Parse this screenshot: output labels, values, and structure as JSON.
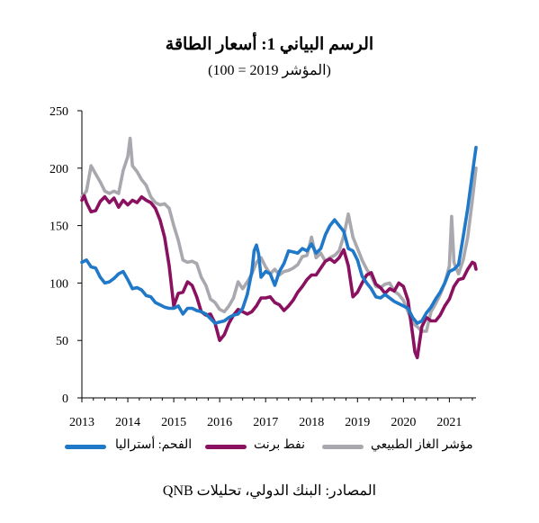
{
  "chart_data": {
    "type": "line",
    "title": "الرسم البياني 1: أسعار الطاقة",
    "subtitle": "(المؤشر 2019 = 100)",
    "source": "المصادر: البنك الدولي، تحليلات QNB",
    "x_ticks": [
      "2013",
      "2014",
      "2015",
      "2016",
      "2017",
      "2018",
      "2019",
      "2020",
      "2021"
    ],
    "y_ticks": [
      "0",
      "50",
      "100",
      "150",
      "200",
      "250"
    ],
    "ylim": [
      0,
      250
    ],
    "xlim": [
      2013.0,
      2021.58
    ],
    "grid": false,
    "legend_position": "bottom",
    "series": [
      {
        "name": "الفحم: أستراليا",
        "color": "#1f78c8",
        "points": [
          [
            2013.0,
            118
          ],
          [
            2013.1,
            120
          ],
          [
            2013.2,
            114
          ],
          [
            2013.3,
            113
          ],
          [
            2013.4,
            105
          ],
          [
            2013.5,
            100
          ],
          [
            2013.6,
            101
          ],
          [
            2013.7,
            104
          ],
          [
            2013.8,
            108
          ],
          [
            2013.9,
            110
          ],
          [
            2014.0,
            103
          ],
          [
            2014.1,
            95
          ],
          [
            2014.2,
            96
          ],
          [
            2014.3,
            94
          ],
          [
            2014.4,
            89
          ],
          [
            2014.5,
            88
          ],
          [
            2014.6,
            83
          ],
          [
            2014.7,
            81
          ],
          [
            2014.8,
            79
          ],
          [
            2014.9,
            78
          ],
          [
            2015.0,
            78
          ],
          [
            2015.1,
            80
          ],
          [
            2015.2,
            73
          ],
          [
            2015.3,
            78
          ],
          [
            2015.4,
            78
          ],
          [
            2015.5,
            76
          ],
          [
            2015.6,
            75
          ],
          [
            2015.7,
            73
          ],
          [
            2015.8,
            69
          ],
          [
            2015.9,
            65
          ],
          [
            2016.0,
            66
          ],
          [
            2016.1,
            67
          ],
          [
            2016.2,
            70
          ],
          [
            2016.3,
            72
          ],
          [
            2016.4,
            73
          ],
          [
            2016.5,
            78
          ],
          [
            2016.6,
            90
          ],
          [
            2016.7,
            110
          ],
          [
            2016.75,
            128
          ],
          [
            2016.8,
            133
          ],
          [
            2016.85,
            125
          ],
          [
            2016.9,
            105
          ],
          [
            2017.0,
            110
          ],
          [
            2017.1,
            108
          ],
          [
            2017.2,
            98
          ],
          [
            2017.3,
            110
          ],
          [
            2017.4,
            117
          ],
          [
            2017.5,
            128
          ],
          [
            2017.6,
            127
          ],
          [
            2017.7,
            126
          ],
          [
            2017.8,
            130
          ],
          [
            2017.9,
            128
          ],
          [
            2018.0,
            134
          ],
          [
            2018.1,
            126
          ],
          [
            2018.2,
            130
          ],
          [
            2018.3,
            142
          ],
          [
            2018.4,
            150
          ],
          [
            2018.5,
            155
          ],
          [
            2018.6,
            150
          ],
          [
            2018.7,
            145
          ],
          [
            2018.8,
            130
          ],
          [
            2018.9,
            128
          ],
          [
            2019.0,
            120
          ],
          [
            2019.1,
            106
          ],
          [
            2019.2,
            100
          ],
          [
            2019.3,
            95
          ],
          [
            2019.4,
            88
          ],
          [
            2019.5,
            87
          ],
          [
            2019.6,
            90
          ],
          [
            2019.7,
            87
          ],
          [
            2019.8,
            84
          ],
          [
            2019.9,
            82
          ],
          [
            2020.0,
            80
          ],
          [
            2020.1,
            78
          ],
          [
            2020.2,
            70
          ],
          [
            2020.3,
            65
          ],
          [
            2020.4,
            67
          ],
          [
            2020.5,
            74
          ],
          [
            2020.6,
            79
          ],
          [
            2020.7,
            86
          ],
          [
            2020.8,
            92
          ],
          [
            2020.9,
            100
          ],
          [
            2021.0,
            110
          ],
          [
            2021.1,
            112
          ],
          [
            2021.2,
            116
          ],
          [
            2021.3,
            140
          ],
          [
            2021.4,
            165
          ],
          [
            2021.5,
            195
          ],
          [
            2021.58,
            218
          ]
        ]
      },
      {
        "name": "نفط برنت",
        "color": "#8a1060",
        "points": [
          [
            2013.0,
            172
          ],
          [
            2013.05,
            176
          ],
          [
            2013.1,
            170
          ],
          [
            2013.2,
            162
          ],
          [
            2013.3,
            163
          ],
          [
            2013.4,
            171
          ],
          [
            2013.5,
            175
          ],
          [
            2013.6,
            170
          ],
          [
            2013.7,
            174
          ],
          [
            2013.8,
            166
          ],
          [
            2013.9,
            172
          ],
          [
            2014.0,
            168
          ],
          [
            2014.1,
            172
          ],
          [
            2014.2,
            170
          ],
          [
            2014.3,
            175
          ],
          [
            2014.4,
            172
          ],
          [
            2014.5,
            170
          ],
          [
            2014.6,
            165
          ],
          [
            2014.7,
            155
          ],
          [
            2014.8,
            140
          ],
          [
            2014.9,
            115
          ],
          [
            2015.0,
            80
          ],
          [
            2015.1,
            91
          ],
          [
            2015.2,
            92
          ],
          [
            2015.3,
            101
          ],
          [
            2015.4,
            98
          ],
          [
            2015.5,
            88
          ],
          [
            2015.6,
            75
          ],
          [
            2015.7,
            72
          ],
          [
            2015.8,
            73
          ],
          [
            2015.9,
            65
          ],
          [
            2016.0,
            50
          ],
          [
            2016.1,
            55
          ],
          [
            2016.2,
            65
          ],
          [
            2016.3,
            72
          ],
          [
            2016.4,
            77
          ],
          [
            2016.5,
            75
          ],
          [
            2016.6,
            73
          ],
          [
            2016.7,
            75
          ],
          [
            2016.8,
            80
          ],
          [
            2016.9,
            87
          ],
          [
            2017.0,
            87
          ],
          [
            2017.1,
            88
          ],
          [
            2017.2,
            83
          ],
          [
            2017.3,
            81
          ],
          [
            2017.4,
            76
          ],
          [
            2017.5,
            80
          ],
          [
            2017.6,
            85
          ],
          [
            2017.7,
            92
          ],
          [
            2017.8,
            97
          ],
          [
            2017.9,
            103
          ],
          [
            2018.0,
            107
          ],
          [
            2018.1,
            107
          ],
          [
            2018.2,
            113
          ],
          [
            2018.3,
            119
          ],
          [
            2018.4,
            121
          ],
          [
            2018.5,
            118
          ],
          [
            2018.6,
            122
          ],
          [
            2018.7,
            129
          ],
          [
            2018.8,
            115
          ],
          [
            2018.9,
            88
          ],
          [
            2019.0,
            92
          ],
          [
            2019.1,
            100
          ],
          [
            2019.2,
            107
          ],
          [
            2019.3,
            109
          ],
          [
            2019.4,
            99
          ],
          [
            2019.5,
            96
          ],
          [
            2019.6,
            91
          ],
          [
            2019.7,
            95
          ],
          [
            2019.8,
            93
          ],
          [
            2019.9,
            100
          ],
          [
            2020.0,
            97
          ],
          [
            2020.1,
            85
          ],
          [
            2020.2,
            55
          ],
          [
            2020.25,
            40
          ],
          [
            2020.3,
            35
          ],
          [
            2020.4,
            62
          ],
          [
            2020.5,
            70
          ],
          [
            2020.6,
            67
          ],
          [
            2020.7,
            67
          ],
          [
            2020.8,
            72
          ],
          [
            2020.9,
            80
          ],
          [
            2021.0,
            86
          ],
          [
            2021.1,
            97
          ],
          [
            2021.2,
            103
          ],
          [
            2021.3,
            104
          ],
          [
            2021.4,
            112
          ],
          [
            2021.5,
            118
          ],
          [
            2021.55,
            117
          ],
          [
            2021.58,
            112
          ]
        ]
      },
      {
        "name": "مؤشر الغاز الطبيعي",
        "color": "#a8a8ae",
        "points": [
          [
            2013.0,
            175
          ],
          [
            2013.1,
            180
          ],
          [
            2013.2,
            202
          ],
          [
            2013.3,
            195
          ],
          [
            2013.4,
            188
          ],
          [
            2013.5,
            180
          ],
          [
            2013.6,
            178
          ],
          [
            2013.7,
            180
          ],
          [
            2013.8,
            178
          ],
          [
            2013.9,
            198
          ],
          [
            2014.0,
            210
          ],
          [
            2014.05,
            226
          ],
          [
            2014.1,
            202
          ],
          [
            2014.2,
            197
          ],
          [
            2014.3,
            190
          ],
          [
            2014.4,
            185
          ],
          [
            2014.5,
            175
          ],
          [
            2014.6,
            170
          ],
          [
            2014.7,
            168
          ],
          [
            2014.8,
            169
          ],
          [
            2014.9,
            165
          ],
          [
            2015.0,
            150
          ],
          [
            2015.1,
            137
          ],
          [
            2015.2,
            120
          ],
          [
            2015.3,
            118
          ],
          [
            2015.4,
            119
          ],
          [
            2015.5,
            117
          ],
          [
            2015.6,
            105
          ],
          [
            2015.7,
            98
          ],
          [
            2015.8,
            86
          ],
          [
            2015.9,
            83
          ],
          [
            2016.0,
            77
          ],
          [
            2016.1,
            75
          ],
          [
            2016.2,
            80
          ],
          [
            2016.3,
            87
          ],
          [
            2016.4,
            101
          ],
          [
            2016.5,
            95
          ],
          [
            2016.6,
            101
          ],
          [
            2016.7,
            108
          ],
          [
            2016.8,
            118
          ],
          [
            2016.9,
            122
          ],
          [
            2017.0,
            114
          ],
          [
            2017.1,
            108
          ],
          [
            2017.2,
            112
          ],
          [
            2017.3,
            107
          ],
          [
            2017.4,
            110
          ],
          [
            2017.5,
            111
          ],
          [
            2017.6,
            113
          ],
          [
            2017.7,
            116
          ],
          [
            2017.8,
            123
          ],
          [
            2017.9,
            124
          ],
          [
            2018.0,
            140
          ],
          [
            2018.1,
            122
          ],
          [
            2018.2,
            126
          ],
          [
            2018.3,
            119
          ],
          [
            2018.4,
            122
          ],
          [
            2018.5,
            124
          ],
          [
            2018.6,
            128
          ],
          [
            2018.7,
            141
          ],
          [
            2018.8,
            160
          ],
          [
            2018.9,
            140
          ],
          [
            2019.0,
            130
          ],
          [
            2019.1,
            120
          ],
          [
            2019.2,
            112
          ],
          [
            2019.3,
            106
          ],
          [
            2019.4,
            97
          ],
          [
            2019.5,
            96
          ],
          [
            2019.6,
            99
          ],
          [
            2019.7,
            100
          ],
          [
            2019.8,
            93
          ],
          [
            2019.9,
            90
          ],
          [
            2020.0,
            85
          ],
          [
            2020.1,
            75
          ],
          [
            2020.2,
            65
          ],
          [
            2020.3,
            62
          ],
          [
            2020.4,
            58
          ],
          [
            2020.5,
            58
          ],
          [
            2020.6,
            75
          ],
          [
            2020.7,
            82
          ],
          [
            2020.8,
            90
          ],
          [
            2020.9,
            100
          ],
          [
            2021.0,
            115
          ],
          [
            2021.05,
            158
          ],
          [
            2021.1,
            118
          ],
          [
            2021.2,
            108
          ],
          [
            2021.3,
            120
          ],
          [
            2021.4,
            140
          ],
          [
            2021.5,
            172
          ],
          [
            2021.58,
            200
          ]
        ]
      }
    ]
  }
}
